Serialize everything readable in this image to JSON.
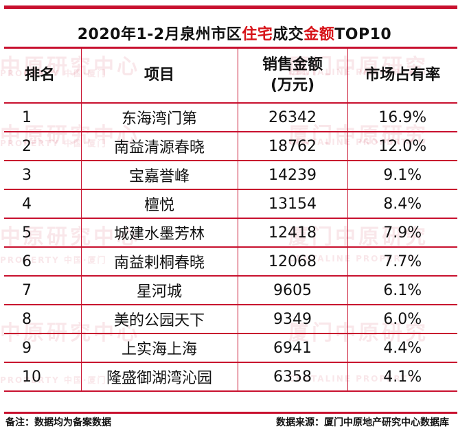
{
  "title": {
    "prefix": "2020年1-2月泉州市区",
    "highlight1": "住宅",
    "middle": "成交",
    "highlight2": "金额",
    "suffix": "TOP10"
  },
  "table": {
    "headers": {
      "rank": "排名",
      "project": "项目",
      "sales_line1": "销售金额",
      "sales_line2": "(万元)",
      "share": "市场占有率"
    },
    "rows": [
      {
        "rank": "1",
        "project": "东海湾门第",
        "sales": "26342",
        "share": "16.9%"
      },
      {
        "rank": "2",
        "project": "南益清源春晓",
        "sales": "18762",
        "share": "12.0%"
      },
      {
        "rank": "3",
        "project": "宝嘉誉峰",
        "sales": "14239",
        "share": "9.1%"
      },
      {
        "rank": "4",
        "project": "檀悦",
        "sales": "13154",
        "share": "8.4%"
      },
      {
        "rank": "5",
        "project": "城建水墨芳林",
        "sales": "12418",
        "share": "7.9%"
      },
      {
        "rank": "6",
        "project": "南益剌桐春晓",
        "sales": "12068",
        "share": "7.7%"
      },
      {
        "rank": "7",
        "project": "星河城",
        "sales": "9605",
        "share": "6.1%"
      },
      {
        "rank": "8",
        "project": "美的公园天下",
        "sales": "9349",
        "share": "6.0%"
      },
      {
        "rank": "9",
        "project": "上实海上海",
        "sales": "6941",
        "share": "4.4%"
      },
      {
        "rank": "10",
        "project": "隆盛御湖湾沁园",
        "sales": "6358",
        "share": "4.1%"
      }
    ]
  },
  "watermarks": {
    "main": "中原研究中心",
    "sub": "PROPERTY  中国·厦门",
    "main2": "厦门中原研究",
    "sub2": "CENTALINE PROPERTY"
  },
  "footer": {
    "note": "备注：数据均为备案数据",
    "source": "数据来源：厦门中原地产研究中心数据库"
  },
  "colors": {
    "accent": "#c8102e",
    "highlight_text": "#d7141a"
  }
}
